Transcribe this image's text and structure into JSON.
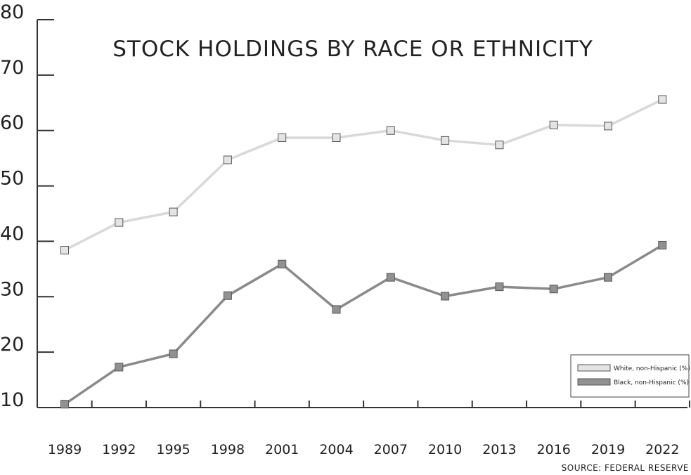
{
  "chart_data": {
    "type": "line",
    "title": "STOCK HOLDINGS BY RACE OR ETHNICITY",
    "source": "SOURCE: FEDERAL RESERVE",
    "x": [
      "1989",
      "1992",
      "1995",
      "1998",
      "2001",
      "2004",
      "2007",
      "2010",
      "2013",
      "2016",
      "2019",
      "2022"
    ],
    "ylim": [
      10,
      80
    ],
    "yticks": [
      80,
      70,
      60,
      50,
      40,
      30,
      20,
      10
    ],
    "grid": false,
    "legend_position": "bottom-right",
    "series": [
      {
        "name": "White, non-Hispanic (%)",
        "color": "#d9d9d9",
        "marker_fill": "#e4e4e4",
        "values": [
          38.4,
          43.4,
          45.3,
          54.7,
          58.7,
          58.7,
          60.0,
          58.2,
          57.4,
          61.0,
          60.8,
          65.6
        ]
      },
      {
        "name": "Black, non-Hispanic (%)",
        "color": "#8a8a8a",
        "marker_fill": "#919191",
        "values": [
          10.6,
          17.3,
          19.7,
          30.2,
          35.9,
          27.7,
          33.5,
          30.1,
          31.8,
          31.4,
          33.5,
          39.3
        ]
      }
    ]
  }
}
